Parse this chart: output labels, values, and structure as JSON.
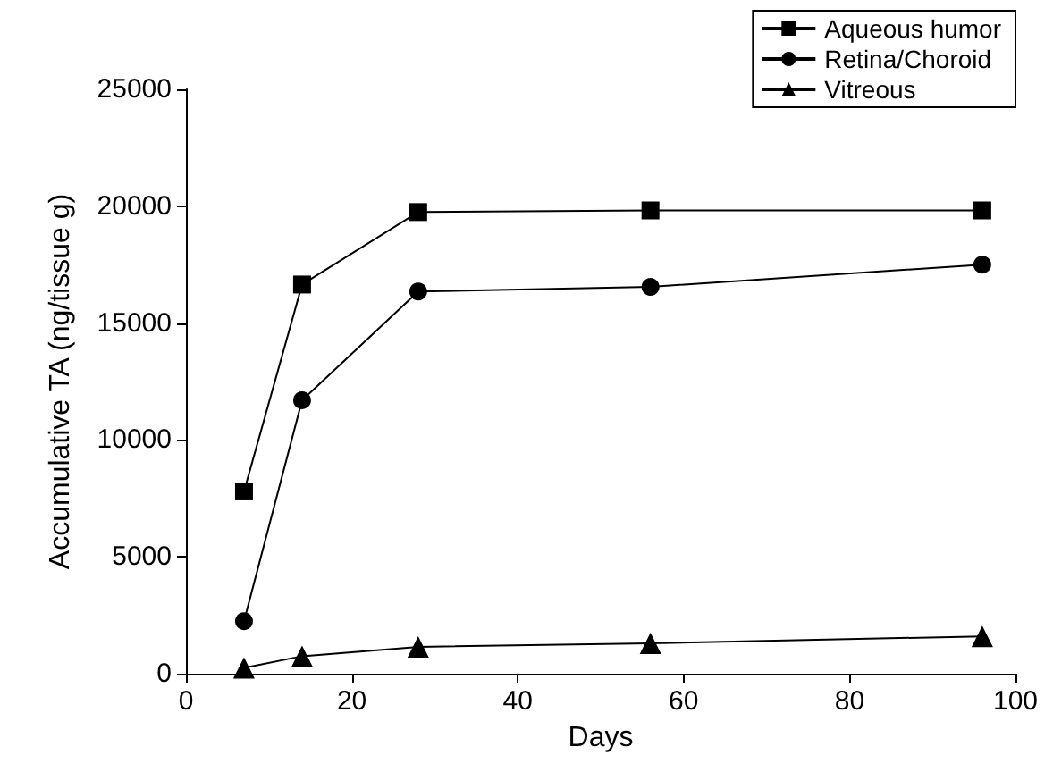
{
  "chart_data": {
    "type": "line",
    "xlabel": "Days",
    "ylabel": "Accumulative TA (ng/tissue g)",
    "x": [
      7,
      14,
      28,
      56,
      96
    ],
    "series": [
      {
        "name": "Aqueous humor",
        "color": "#000000",
        "marker": "square",
        "values": [
          7800,
          16650,
          19750,
          19820,
          19820
        ]
      },
      {
        "name": "Retina/Choroid",
        "color": "#000000",
        "marker": "circle",
        "values": [
          2250,
          11700,
          16350,
          16550,
          17500
        ]
      },
      {
        "name": "Vitreous",
        "color": "#000000",
        "marker": "triangle",
        "values": [
          250,
          750,
          1150,
          1300,
          1600
        ]
      }
    ],
    "xlim": [
      0,
      100
    ],
    "xticks": [
      0,
      20,
      40,
      60,
      80,
      100
    ],
    "ylim": [
      0,
      25000
    ],
    "yticks": [
      0,
      5000,
      10000,
      15000,
      20000,
      25000
    ],
    "grid": false,
    "legend": "top right",
    "line_style": "solid"
  }
}
